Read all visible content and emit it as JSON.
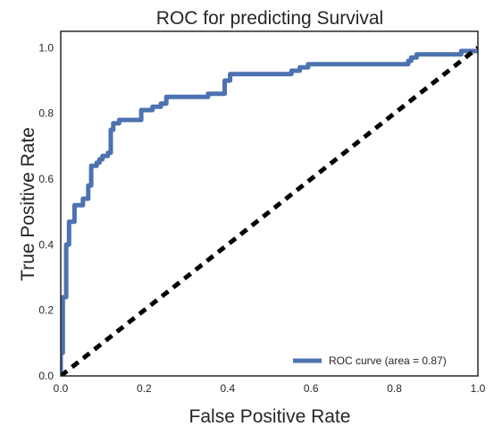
{
  "chart_data": {
    "type": "line",
    "title": "ROC for predicting Survival",
    "xlabel": "False Positive Rate",
    "ylabel": "True Positive Rate",
    "xlim": [
      0.0,
      1.0
    ],
    "ylim": [
      0.0,
      1.05
    ],
    "x_ticks": [
      "0.0",
      "0.2",
      "0.4",
      "0.6",
      "0.8",
      "1.0"
    ],
    "y_ticks": [
      "0.0",
      "0.2",
      "0.4",
      "0.6",
      "0.8",
      "1.0"
    ],
    "grid": false,
    "legend_position": "lower right",
    "series": [
      {
        "name": "ROC curve (area = 0.87)",
        "color": "#4c72b0",
        "style": "solid",
        "points": [
          [
            0.0,
            0.0
          ],
          [
            0.0,
            0.07
          ],
          [
            0.005,
            0.07
          ],
          [
            0.005,
            0.24
          ],
          [
            0.013,
            0.24
          ],
          [
            0.013,
            0.4
          ],
          [
            0.02,
            0.4
          ],
          [
            0.02,
            0.47
          ],
          [
            0.033,
            0.47
          ],
          [
            0.033,
            0.52
          ],
          [
            0.053,
            0.52
          ],
          [
            0.053,
            0.54
          ],
          [
            0.066,
            0.54
          ],
          [
            0.066,
            0.58
          ],
          [
            0.073,
            0.58
          ],
          [
            0.073,
            0.64
          ],
          [
            0.086,
            0.64
          ],
          [
            0.086,
            0.65
          ],
          [
            0.093,
            0.65
          ],
          [
            0.093,
            0.66
          ],
          [
            0.1,
            0.66
          ],
          [
            0.1,
            0.67
          ],
          [
            0.113,
            0.67
          ],
          [
            0.113,
            0.68
          ],
          [
            0.12,
            0.68
          ],
          [
            0.12,
            0.75
          ],
          [
            0.126,
            0.75
          ],
          [
            0.126,
            0.77
          ],
          [
            0.14,
            0.77
          ],
          [
            0.14,
            0.78
          ],
          [
            0.193,
            0.78
          ],
          [
            0.193,
            0.81
          ],
          [
            0.22,
            0.81
          ],
          [
            0.22,
            0.82
          ],
          [
            0.24,
            0.82
          ],
          [
            0.24,
            0.83
          ],
          [
            0.253,
            0.83
          ],
          [
            0.253,
            0.85
          ],
          [
            0.353,
            0.85
          ],
          [
            0.353,
            0.86
          ],
          [
            0.393,
            0.86
          ],
          [
            0.393,
            0.9
          ],
          [
            0.406,
            0.9
          ],
          [
            0.406,
            0.92
          ],
          [
            0.553,
            0.92
          ],
          [
            0.553,
            0.93
          ],
          [
            0.573,
            0.93
          ],
          [
            0.573,
            0.94
          ],
          [
            0.593,
            0.94
          ],
          [
            0.593,
            0.95
          ],
          [
            0.833,
            0.95
          ],
          [
            0.833,
            0.96
          ],
          [
            0.84,
            0.96
          ],
          [
            0.84,
            0.97
          ],
          [
            0.853,
            0.97
          ],
          [
            0.853,
            0.98
          ],
          [
            0.96,
            0.98
          ],
          [
            0.96,
            0.99
          ],
          [
            1.0,
            0.99
          ]
        ]
      },
      {
        "name": "",
        "color": "#000000",
        "style": "dashed",
        "points": [
          [
            0.0,
            0.0
          ],
          [
            1.0,
            1.0
          ]
        ]
      }
    ]
  }
}
